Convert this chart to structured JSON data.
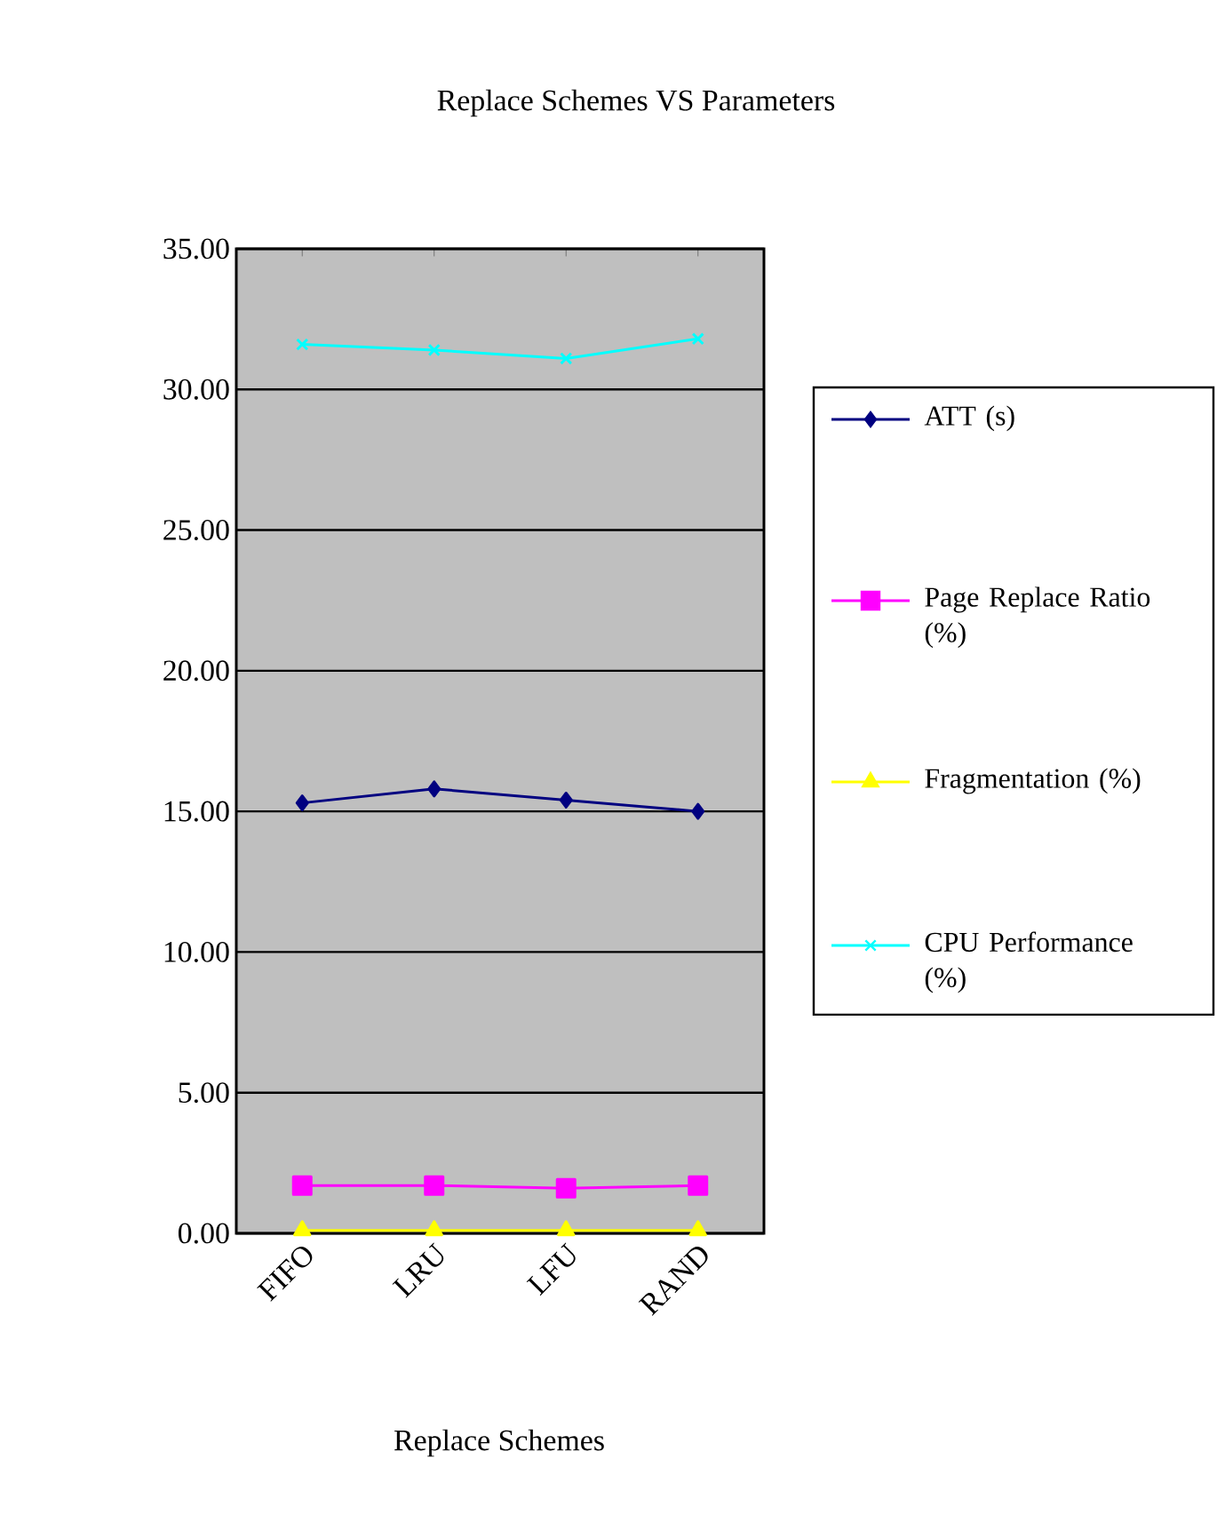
{
  "chart_data": {
    "type": "line",
    "title": "Replace Schemes VS Parameters",
    "xlabel": "Replace Schemes",
    "categories": [
      "FIFO",
      "LRU",
      "LFU",
      "RAND"
    ],
    "series": [
      {
        "name": "ATT (s)",
        "color": "#000080",
        "marker": "diamond",
        "values": [
          15.3,
          15.8,
          15.4,
          15.0
        ]
      },
      {
        "name": "Page Replace Ratio (%)",
        "color": "#ff00ff",
        "marker": "square",
        "values": [
          1.7,
          1.7,
          1.6,
          1.7
        ]
      },
      {
        "name": "Fragmentation (%)",
        "color": "#ffff00",
        "marker": "triangle",
        "values": [
          0.1,
          0.1,
          0.1,
          0.1
        ]
      },
      {
        "name": "CPU Performance (%)",
        "color": "#00ffff",
        "marker": "cross",
        "values": [
          31.6,
          31.4,
          31.1,
          31.8
        ]
      }
    ],
    "ylim": [
      0,
      35
    ],
    "yticks": [
      {
        "value": 0,
        "label": "0.00"
      },
      {
        "value": 5,
        "label": "5.00"
      },
      {
        "value": 10,
        "label": "10.00"
      },
      {
        "value": 15,
        "label": "15.00"
      },
      {
        "value": 20,
        "label": "20.00"
      },
      {
        "value": 25,
        "label": "25.00"
      },
      {
        "value": 30,
        "label": "30.00"
      },
      {
        "value": 35,
        "label": "35.00"
      }
    ],
    "grid": "y",
    "legend": "right"
  }
}
